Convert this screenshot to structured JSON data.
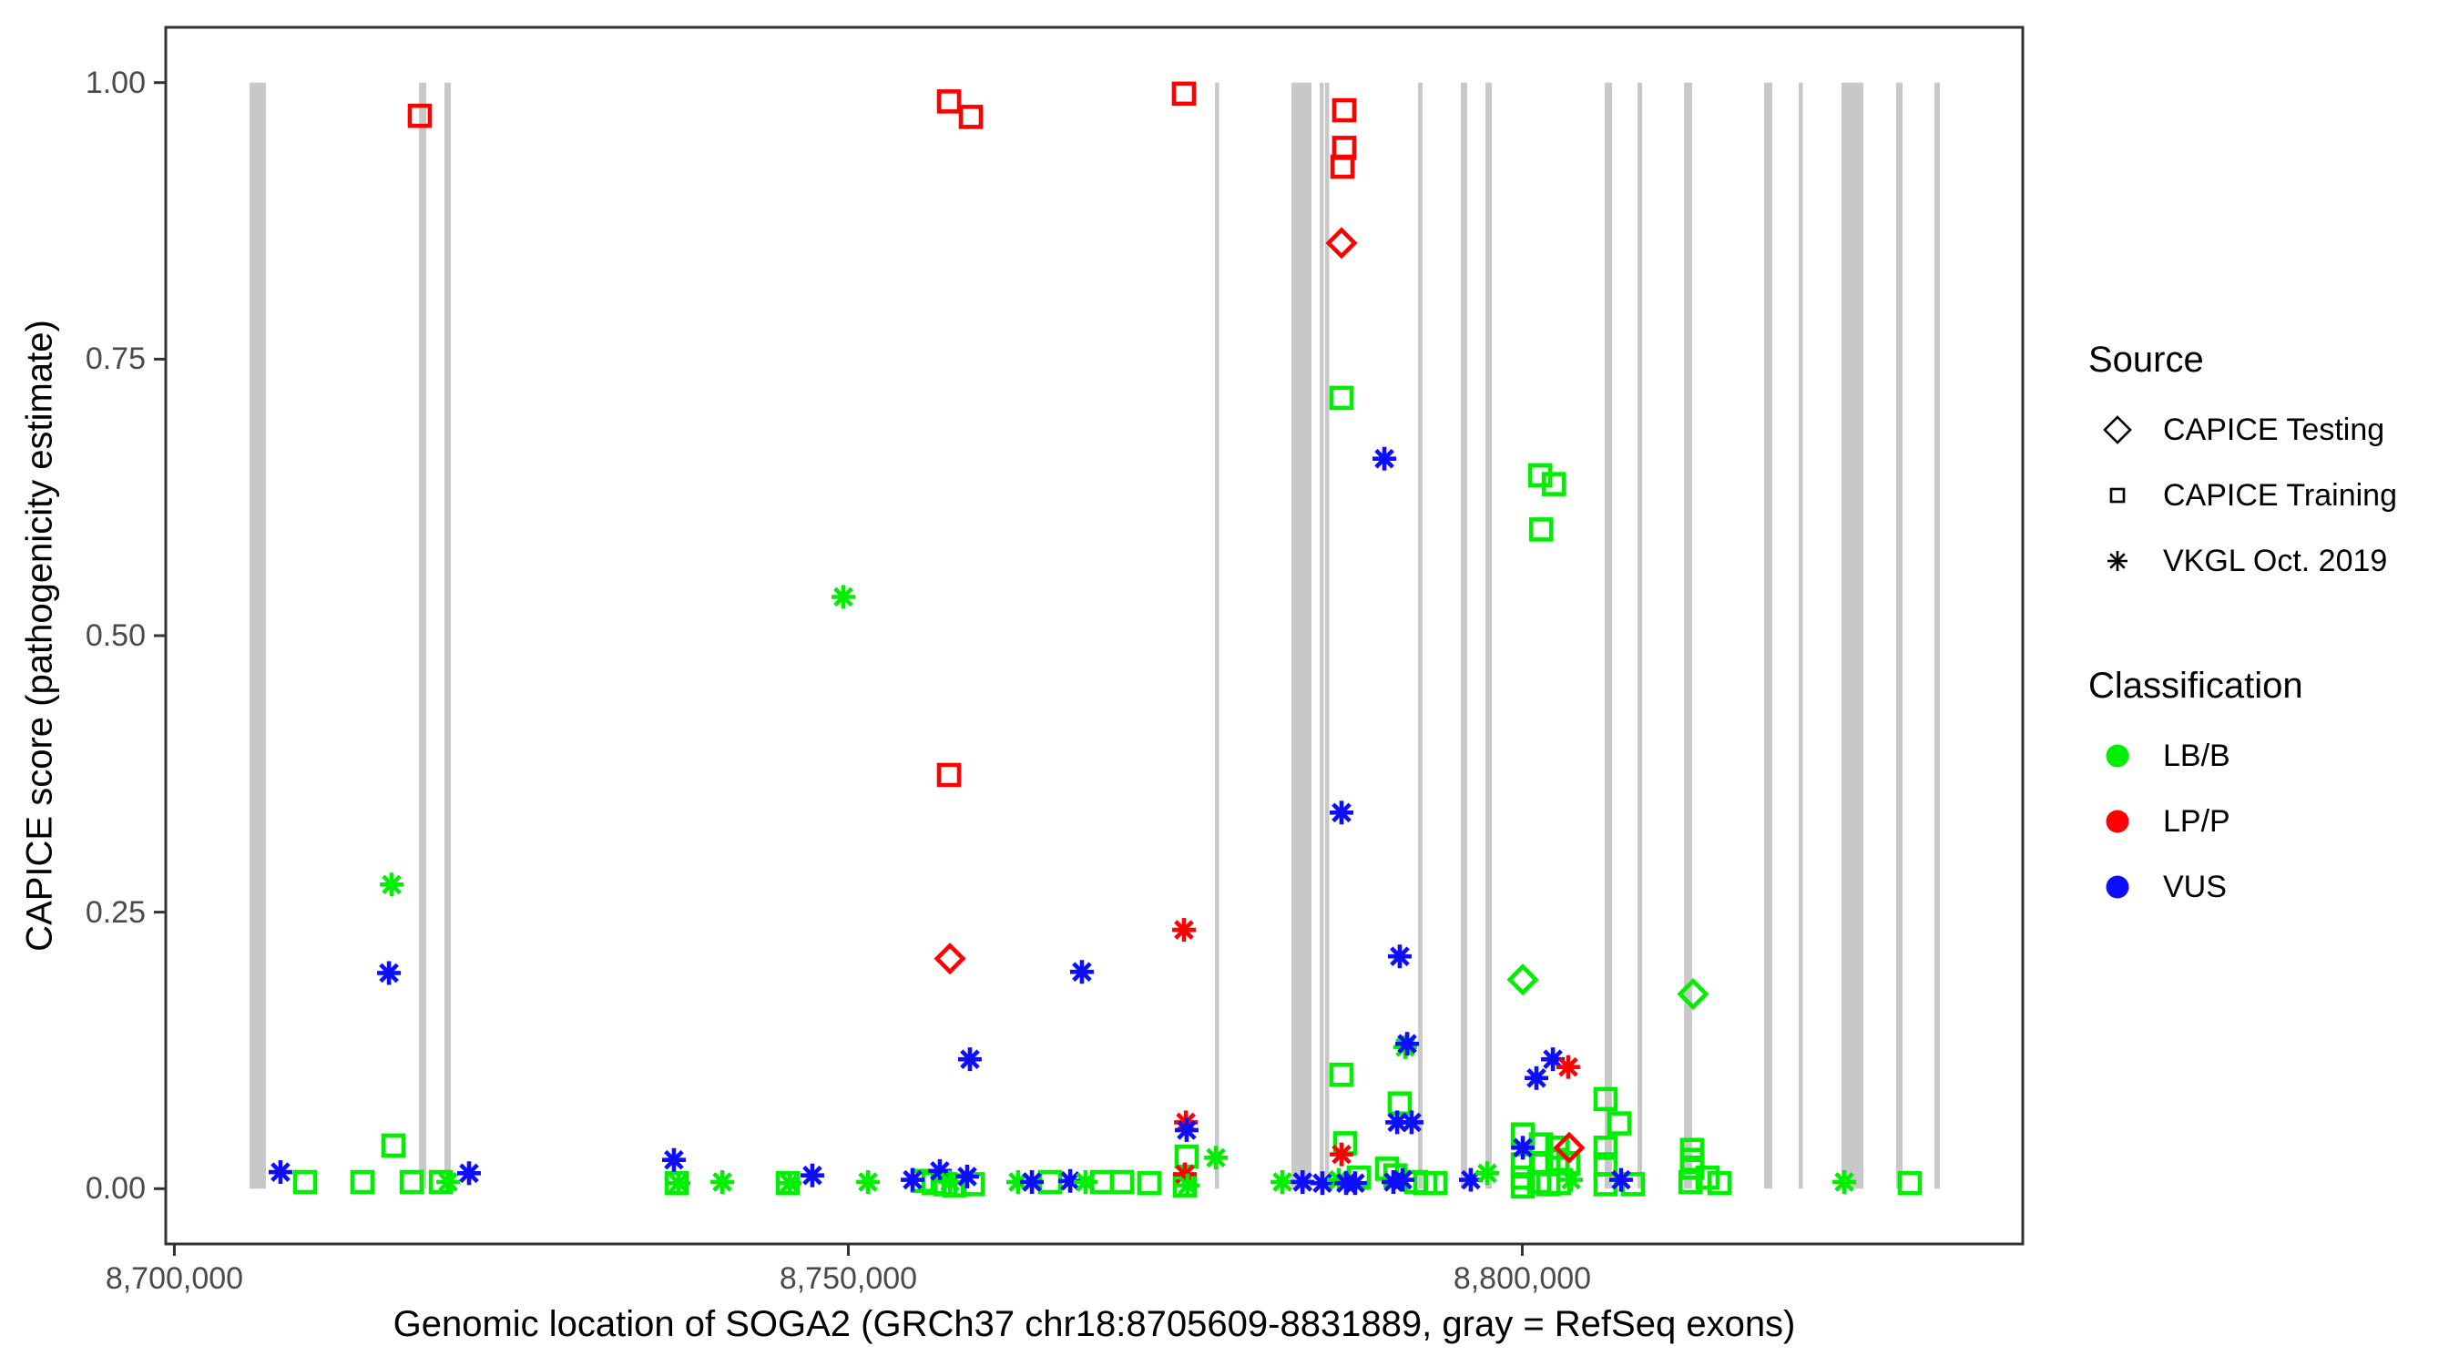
{
  "figure_colors": {
    "LB/B": "#00ee00",
    "LP/P": "#ff0000",
    "VUS": "#0d0dff",
    "exon_gray": "#c8c8c8",
    "panel_border": "#333333",
    "tick_text": "#4a4a4a"
  },
  "axes": {
    "x_title": "Genomic location of SOGA2 (GRCh37 chr18:8705609-8831889, gray = RefSeq exons)",
    "y_title": "CAPICE score (pathogenicity estimate)",
    "x_ticks": [
      {
        "pos": 8700000,
        "label": "8,700,000"
      },
      {
        "pos": 8750000,
        "label": "8,750,000"
      },
      {
        "pos": 8800000,
        "label": "8,800,000"
      }
    ],
    "y_ticks": [
      {
        "v": 0.0,
        "label": "0.00"
      },
      {
        "v": 0.25,
        "label": "0.25"
      },
      {
        "v": 0.5,
        "label": "0.50"
      },
      {
        "v": 0.75,
        "label": "0.75"
      },
      {
        "v": 1.0,
        "label": "1.00"
      }
    ]
  },
  "legend": {
    "source": {
      "title": "Source",
      "items": [
        {
          "marker": "diamond",
          "label": "CAPICE Testing"
        },
        {
          "marker": "square",
          "label": "CAPICE Training"
        },
        {
          "marker": "asterisk",
          "label": "VKGL Oct. 2019"
        }
      ]
    },
    "classification": {
      "title": "Classification",
      "items": [
        {
          "marker": "dot",
          "color": "#00ee00",
          "label": "LB/B"
        },
        {
          "marker": "dot",
          "color": "#ff0000",
          "label": "LP/P"
        },
        {
          "marker": "dot",
          "color": "#0d0dff",
          "label": "VUS"
        }
      ]
    }
  },
  "chart_data": {
    "type": "scatter",
    "title": "",
    "xlabel": "Genomic location of SOGA2 (GRCh37 chr18:8705609-8831889, gray = RefSeq exons)",
    "ylabel": "CAPICE score (pathogenicity estimate)",
    "x_domain": [
      8699360,
      8837130
    ],
    "y_domain": [
      -0.05,
      1.05
    ],
    "grid": false,
    "legend_position": "right",
    "source_shapes": {
      "D": "CAPICE Testing (open diamond)",
      "T": "CAPICE Training (open square)",
      "V": "VKGL Oct. 2019 (asterisk)"
    },
    "class_colors": {
      "B": "LB/B",
      "P": "LP/P",
      "U": "VUS"
    },
    "exons_note": "gray vertical bars = RefSeq exons, genomic start/end",
    "exons": [
      [
        8705580,
        8706790
      ],
      [
        8718150,
        8718690
      ],
      [
        8720040,
        8720510
      ],
      [
        8777200,
        8777470
      ],
      [
        8782870,
        8784360
      ],
      [
        8784970,
        8785170
      ],
      [
        8785370,
        8785580
      ],
      [
        8792270,
        8792600
      ],
      [
        8795440,
        8795910
      ],
      [
        8797270,
        8797740
      ],
      [
        8806120,
        8806660
      ],
      [
        8808550,
        8808890
      ],
      [
        8812000,
        8812600
      ],
      [
        8817940,
        8818550
      ],
      [
        8820510,
        8820780
      ],
      [
        8823680,
        8825310
      ],
      [
        8827740,
        8828210
      ],
      [
        8830580,
        8830980
      ]
    ],
    "point_format": [
      "genomic_position",
      "capice_score",
      "source",
      "classification"
    ],
    "points": [
      [
        8707870,
        0.015,
        "V",
        "U"
      ],
      [
        8709700,
        0.006,
        "T",
        "B"
      ],
      [
        8713950,
        0.006,
        "T",
        "B"
      ],
      [
        8715920,
        0.195,
        "V",
        "U"
      ],
      [
        8716120,
        0.275,
        "V",
        "B"
      ],
      [
        8716250,
        0.039,
        "T",
        "B"
      ],
      [
        8717610,
        0.006,
        "T",
        "B"
      ],
      [
        8718210,
        0.97,
        "T",
        "P"
      ],
      [
        8719770,
        0.006,
        "T",
        "B"
      ],
      [
        8720310,
        0.006,
        "V",
        "B"
      ],
      [
        8721860,
        0.014,
        "V",
        "U"
      ],
      [
        8737060,
        0.026,
        "V",
        "U"
      ],
      [
        8737270,
        0.005,
        "T",
        "B"
      ],
      [
        8737400,
        0.005,
        "V",
        "B"
      ],
      [
        8740650,
        0.006,
        "V",
        "B"
      ],
      [
        8745510,
        0.005,
        "T",
        "B"
      ],
      [
        8745650,
        0.005,
        "V",
        "B"
      ],
      [
        8747330,
        0.012,
        "V",
        "U"
      ],
      [
        8749630,
        0.535,
        "V",
        "B"
      ],
      [
        8751460,
        0.006,
        "V",
        "B"
      ],
      [
        8754770,
        0.008,
        "V",
        "U"
      ],
      [
        8755510,
        0.007,
        "T",
        "B"
      ],
      [
        8756320,
        0.005,
        "T",
        "B"
      ],
      [
        8756790,
        0.016,
        "V",
        "U"
      ],
      [
        8757200,
        0.004,
        "T",
        "B"
      ],
      [
        8757470,
        0.983,
        "T",
        "P"
      ],
      [
        8757470,
        0.374,
        "T",
        "P"
      ],
      [
        8757540,
        0.208,
        "D",
        "P"
      ],
      [
        8757540,
        0.006,
        "V",
        "B"
      ],
      [
        8757870,
        0.003,
        "T",
        "B"
      ],
      [
        8758820,
        0.011,
        "V",
        "U"
      ],
      [
        8759020,
        0.117,
        "V",
        "U"
      ],
      [
        8759090,
        0.969,
        "T",
        "P"
      ],
      [
        8759230,
        0.004,
        "T",
        "B"
      ],
      [
        8762600,
        0.006,
        "V",
        "B"
      ],
      [
        8763620,
        0.006,
        "V",
        "U"
      ],
      [
        8764970,
        0.006,
        "T",
        "B"
      ],
      [
        8766460,
        0.007,
        "V",
        "U"
      ],
      [
        8767330,
        0.196,
        "V",
        "U"
      ],
      [
        8767600,
        0.006,
        "V",
        "B"
      ],
      [
        8768820,
        0.006,
        "T",
        "B"
      ],
      [
        8770310,
        0.006,
        "T",
        "B"
      ],
      [
        8772330,
        0.005,
        "T",
        "B"
      ],
      [
        8774900,
        0.99,
        "T",
        "P"
      ],
      [
        8774900,
        0.234,
        "V",
        "P"
      ],
      [
        8775040,
        0.06,
        "V",
        "P"
      ],
      [
        8775100,
        0.053,
        "V",
        "U"
      ],
      [
        8775100,
        0.029,
        "T",
        "B"
      ],
      [
        8774970,
        0.013,
        "V",
        "P"
      ],
      [
        8774970,
        0.003,
        "T",
        "B"
      ],
      [
        8775170,
        0.003,
        "V",
        "B"
      ],
      [
        8777270,
        0.028,
        "V",
        "B"
      ],
      [
        8782200,
        0.006,
        "V",
        "B"
      ],
      [
        8783700,
        0.006,
        "V",
        "U"
      ],
      [
        8785170,
        0.005,
        "V",
        "U"
      ],
      [
        8786390,
        0.008,
        "V",
        "B"
      ],
      [
        8786590,
        0.855,
        "D",
        "P"
      ],
      [
        8786590,
        0.715,
        "T",
        "B"
      ],
      [
        8786590,
        0.34,
        "V",
        "U"
      ],
      [
        8786590,
        0.103,
        "T",
        "B"
      ],
      [
        8786590,
        0.031,
        "V",
        "P"
      ],
      [
        8786790,
        0.975,
        "T",
        "P"
      ],
      [
        8786790,
        0.941,
        "T",
        "P"
      ],
      [
        8786660,
        0.924,
        "T",
        "P"
      ],
      [
        8786860,
        0.041,
        "T",
        "B"
      ],
      [
        8786930,
        0.005,
        "V",
        "U"
      ],
      [
        8787600,
        0.005,
        "V",
        "U"
      ],
      [
        8787870,
        0.01,
        "T",
        "B"
      ],
      [
        8789770,
        0.66,
        "V",
        "U"
      ],
      [
        8789970,
        0.018,
        "T",
        "B"
      ],
      [
        8790440,
        0.006,
        "V",
        "U"
      ],
      [
        8790580,
        0.012,
        "T",
        "B"
      ],
      [
        8790720,
        0.06,
        "V",
        "U"
      ],
      [
        8790910,
        0.21,
        "V",
        "U"
      ],
      [
        8790910,
        0.077,
        "T",
        "B"
      ],
      [
        8791120,
        0.008,
        "V",
        "U"
      ],
      [
        8791320,
        0.128,
        "V",
        "B"
      ],
      [
        8791460,
        0.131,
        "V",
        "U"
      ],
      [
        8791790,
        0.06,
        "V",
        "U"
      ],
      [
        8792130,
        0.006,
        "T",
        "B"
      ],
      [
        8792810,
        0.005,
        "T",
        "B"
      ],
      [
        8793550,
        0.005,
        "T",
        "B"
      ],
      [
        8796180,
        0.008,
        "V",
        "U"
      ],
      [
        8797400,
        0.014,
        "V",
        "B"
      ],
      [
        8800040,
        0.189,
        "D",
        "B"
      ],
      [
        8800040,
        0.049,
        "T",
        "B"
      ],
      [
        8800040,
        0.037,
        "V",
        "U"
      ],
      [
        8800040,
        0.022,
        "T",
        "B"
      ],
      [
        8800040,
        0.01,
        "T",
        "B"
      ],
      [
        8800040,
        0.002,
        "T",
        "B"
      ],
      [
        8801050,
        0.1,
        "V",
        "U"
      ],
      [
        8801330,
        0.645,
        "T",
        "B"
      ],
      [
        8801390,
        0.04,
        "T",
        "B"
      ],
      [
        8801390,
        0.023,
        "T",
        "B"
      ],
      [
        8801250,
        0.006,
        "T",
        "B"
      ],
      [
        8801400,
        0.596,
        "T",
        "B"
      ],
      [
        8801930,
        0.004,
        "T",
        "B"
      ],
      [
        8802270,
        0.117,
        "V",
        "U"
      ],
      [
        8802340,
        0.637,
        "T",
        "B"
      ],
      [
        8802600,
        0.037,
        "T",
        "B"
      ],
      [
        8802600,
        0.026,
        "T",
        "B"
      ],
      [
        8802740,
        0.005,
        "T",
        "B"
      ],
      [
        8803410,
        0.11,
        "V",
        "P"
      ],
      [
        8803480,
        0.037,
        "D",
        "P"
      ],
      [
        8803410,
        0.023,
        "T",
        "B"
      ],
      [
        8803620,
        0.008,
        "V",
        "B"
      ],
      [
        8806180,
        0.081,
        "T",
        "B"
      ],
      [
        8806180,
        0.037,
        "T",
        "B"
      ],
      [
        8806180,
        0.022,
        "T",
        "B"
      ],
      [
        8806180,
        0.004,
        "T",
        "B"
      ],
      [
        8807200,
        0.059,
        "T",
        "B"
      ],
      [
        8807330,
        0.008,
        "V",
        "U"
      ],
      [
        8808210,
        0.004,
        "T",
        "B"
      ],
      [
        8812600,
        0.035,
        "T",
        "B"
      ],
      [
        8812600,
        0.026,
        "T",
        "B"
      ],
      [
        8812600,
        0.019,
        "T",
        "B"
      ],
      [
        8812480,
        0.006,
        "T",
        "B"
      ],
      [
        8812670,
        0.176,
        "D",
        "B"
      ],
      [
        8813750,
        0.01,
        "T",
        "B"
      ],
      [
        8814630,
        0.005,
        "T",
        "B"
      ],
      [
        8823890,
        0.006,
        "V",
        "B"
      ],
      [
        8828750,
        0.005,
        "T",
        "B"
      ]
    ]
  }
}
